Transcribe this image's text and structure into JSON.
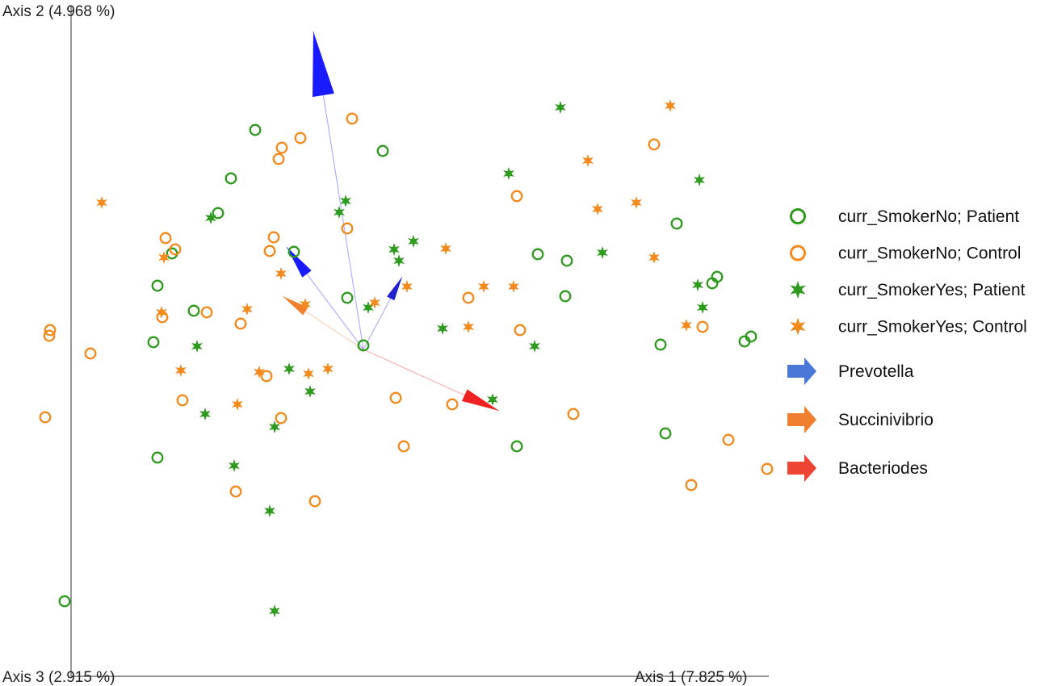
{
  "chart_data": {
    "type": "scatter",
    "subtype": "3D PCoA biplot",
    "axes": {
      "x_label": "Axis 1 (7.825 %)",
      "y_label": "Axis 2 (4.968 %)",
      "z_label": "Axis 3 (2.915 %)"
    },
    "grid": false,
    "legend_position": "right",
    "series": [
      {
        "name": "curr_SmokerNo; Patient",
        "marker": "ring",
        "color": "#2e9a1e",
        "points": [
          [
            -370,
            -312
          ],
          [
            -260,
            9
          ],
          [
            -255,
            79
          ],
          [
            -255,
            -134
          ],
          [
            -237,
            119
          ],
          [
            -210,
            48
          ],
          [
            -180,
            169
          ],
          [
            -164,
            212
          ],
          [
            -134,
            272
          ],
          [
            -86,
            121
          ],
          [
            -20,
            64
          ],
          [
            0,
            5
          ],
          [
            24,
            246
          ],
          [
            190,
            -120
          ],
          [
            216,
            118
          ],
          [
            250,
            66
          ],
          [
            252,
            110
          ],
          [
            368,
            6
          ],
          [
            374,
            -104
          ],
          [
            388,
            156
          ],
          [
            432,
            82
          ],
          [
            438,
            90
          ],
          [
            472,
            10
          ],
          [
            480,
            16
          ]
        ]
      },
      {
        "name": "curr_SmokerNo; Control",
        "marker": "ring",
        "color": "#f28a1e",
        "points": [
          [
            -394,
            -84
          ],
          [
            -389,
            17
          ],
          [
            -388,
            24
          ],
          [
            -338,
            -5
          ],
          [
            -249,
            40
          ],
          [
            -245,
            138
          ],
          [
            -224,
            -63
          ],
          [
            -233,
            124
          ],
          [
            -194,
            46
          ],
          [
            -158,
            -176
          ],
          [
            -152,
            32
          ],
          [
            -120,
            -33
          ],
          [
            -116,
            122
          ],
          [
            -111,
            139
          ],
          [
            -105,
            236
          ],
          [
            -101,
            250
          ],
          [
            -102,
            -85
          ],
          [
            -60,
            -188
          ],
          [
            -78,
            262
          ],
          [
            -20,
            150
          ],
          [
            -14,
            286
          ],
          [
            50,
            -120
          ],
          [
            40,
            -60
          ],
          [
            110,
            -68
          ],
          [
            130,
            64
          ],
          [
            190,
            190
          ],
          [
            194,
            24
          ],
          [
            260,
            -80
          ],
          [
            406,
            -168
          ],
          [
            360,
            254
          ],
          [
            420,
            28
          ],
          [
            452,
            -112
          ],
          [
            500,
            -148
          ]
        ]
      },
      {
        "name": "curr_SmokerYes; Patient",
        "marker": "star",
        "color": "#2e9a1e",
        "points": [
          [
            -206,
            4
          ],
          [
            -189,
            163
          ],
          [
            -196,
            -80
          ],
          [
            -160,
            -144
          ],
          [
            -116,
            -200
          ],
          [
            -92,
            -24
          ],
          [
            -110,
            -324
          ],
          [
            -110,
            -96
          ],
          [
            -66,
            -52
          ],
          [
            -30,
            170
          ],
          [
            -22,
            184
          ],
          [
            6,
            52
          ],
          [
            38,
            124
          ],
          [
            44,
            110
          ],
          [
            62,
            134
          ],
          [
            98,
            26
          ],
          [
            212,
            4
          ],
          [
            160,
            -62
          ],
          [
            180,
            218
          ],
          [
            244,
            300
          ],
          [
            296,
            120
          ],
          [
            414,
            80
          ],
          [
            420,
            52
          ],
          [
            416,
            210
          ]
        ]
      },
      {
        "name": "curr_SmokerYes; Control",
        "marker": "star",
        "color": "#f28a1e",
        "points": [
          [
            -324,
            182
          ],
          [
            -250,
            46
          ],
          [
            -247,
            114
          ],
          [
            -226,
            -26
          ],
          [
            -156,
            -68
          ],
          [
            -144,
            50
          ],
          [
            -129,
            -28
          ],
          [
            -102,
            94
          ],
          [
            -68,
            -30
          ],
          [
            -72,
            56
          ],
          [
            -44,
            -24
          ],
          [
            14,
            58
          ],
          [
            54,
            78
          ],
          [
            102,
            125
          ],
          [
            130,
            28
          ],
          [
            149,
            78
          ],
          [
            186,
            78
          ],
          [
            290,
            174
          ],
          [
            278,
            234
          ],
          [
            338,
            182
          ],
          [
            360,
            114
          ],
          [
            380,
            302
          ],
          [
            400,
            30
          ]
        ]
      }
    ],
    "arrows": [
      {
        "name": "Prevotella",
        "color": "#1a1aff",
        "from": [
          0,
          0
        ],
        "to": [
          -62,
          394
        ]
      },
      {
        "name": "",
        "color": "#1a1aff",
        "from": [
          0,
          0
        ],
        "to": [
          -95,
          127
        ]
      },
      {
        "name": "",
        "color": "#2020cc",
        "from": [
          0,
          0
        ],
        "to": [
          48,
          90
        ]
      },
      {
        "name": "Succinivibrio",
        "color": "#f08030",
        "from": [
          0,
          0
        ],
        "to": [
          -100,
          66
        ]
      },
      {
        "name": "Bacteriodes",
        "color": "#ee2222",
        "from": [
          0,
          0
        ],
        "to": [
          168,
          -76
        ]
      }
    ],
    "legend": [
      {
        "label": "curr_SmokerNo; Patient",
        "marker": "ring",
        "color": "#2e9a1e"
      },
      {
        "label": "curr_SmokerNo; Control",
        "marker": "ring",
        "color": "#f28a1e"
      },
      {
        "label": "curr_SmokerYes; Patient",
        "marker": "star",
        "color": "#2e9a1e"
      },
      {
        "label": "curr_SmokerYes; Control",
        "marker": "star",
        "color": "#f28a1e"
      },
      {
        "label": "Prevotella",
        "marker": "arrow",
        "color": "#4a78d8"
      },
      {
        "label": "Succinivibrio",
        "marker": "arrow",
        "color": "#f08030"
      },
      {
        "label": "Bacteriodes",
        "marker": "arrow",
        "color": "#ee4433"
      }
    ]
  }
}
